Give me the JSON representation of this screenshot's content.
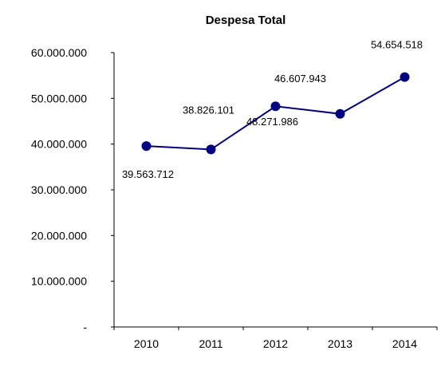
{
  "chart_data": {
    "type": "line",
    "title": "Despesa Total",
    "xlabel": "",
    "ylabel": "",
    "categories": [
      "2010",
      "2011",
      "2012",
      "2013",
      "2014"
    ],
    "series": [
      {
        "values": [
          39563712,
          38826101,
          48271986,
          46607943,
          54654518
        ],
        "color": "#000080"
      }
    ],
    "data_labels": [
      "39.563.712",
      "38.826.101",
      "48.271.986",
      "46.607.943",
      "54.654.518"
    ],
    "y_tick_labels": [
      "-",
      "10.000.000",
      "20.000.000",
      "30.000.000",
      "40.000.000",
      "50.000.000",
      "60.000.000"
    ],
    "y_tick_values": [
      0,
      10000000,
      20000000,
      30000000,
      40000000,
      50000000,
      60000000
    ],
    "ylim": [
      0,
      60000000
    ],
    "grid": false,
    "legend": "none"
  }
}
